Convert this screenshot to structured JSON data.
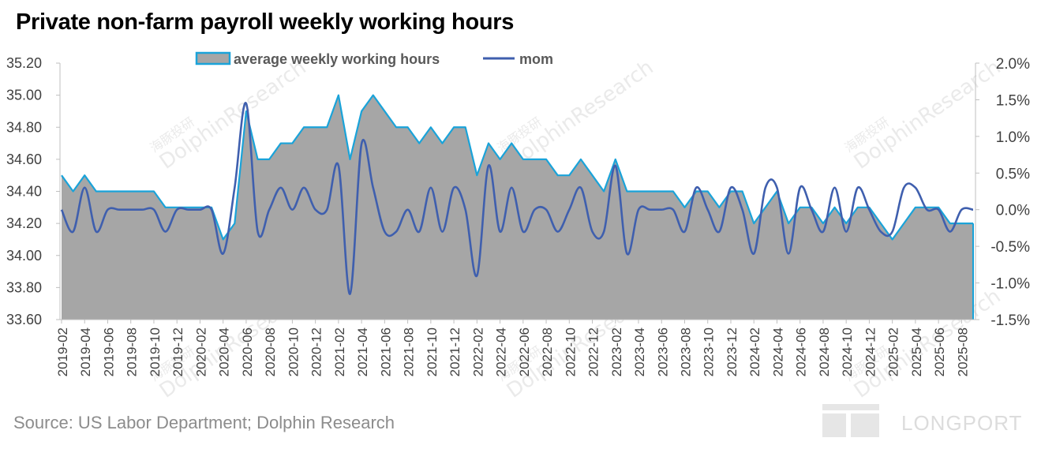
{
  "title": "Private non-farm payroll weekly working hours",
  "source": "Source: US  Labor Department; Dolphin Research",
  "watermark": {
    "cn": "海豚投研",
    "en": "DolphinResearch"
  },
  "logo": {
    "text": "LONGPORT"
  },
  "colors": {
    "area_fill": "#a6a6a6",
    "area_line": "#1aa3d9",
    "mom_line": "#3f5fae",
    "axis_text": "#404040",
    "axis_line": "#bfbfbf"
  },
  "chart_data": {
    "type": "area",
    "title": "Private non-farm payroll weekly working hours",
    "x": [
      "2019-02",
      "2019-03",
      "2019-04",
      "2019-05",
      "2019-06",
      "2019-07",
      "2019-08",
      "2019-09",
      "2019-10",
      "2019-11",
      "2019-12",
      "2020-01",
      "2020-02",
      "2020-03",
      "2020-04",
      "2020-05",
      "2020-06",
      "2020-07",
      "2020-08",
      "2020-09",
      "2020-10",
      "2020-11",
      "2020-12",
      "2021-01",
      "2021-02",
      "2021-03",
      "2021-04",
      "2021-05",
      "2021-06",
      "2021-07",
      "2021-08",
      "2021-09",
      "2021-10",
      "2021-11",
      "2021-12",
      "2022-01",
      "2022-02",
      "2022-03",
      "2022-04",
      "2022-05",
      "2022-06",
      "2022-07",
      "2022-08",
      "2022-09",
      "2022-10",
      "2022-11",
      "2022-12",
      "2023-01",
      "2023-02",
      "2023-03",
      "2023-04",
      "2023-05",
      "2023-06",
      "2023-07",
      "2023-08",
      "2023-09",
      "2023-10",
      "2023-11",
      "2023-12",
      "2024-01",
      "2024-02",
      "2024-03",
      "2024-04",
      "2024-05",
      "2024-06",
      "2024-07",
      "2024-08",
      "2024-09",
      "2024-10",
      "2024-11",
      "2024-12",
      "2025-01",
      "2025-02",
      "2025-03",
      "2025-04",
      "2025-05",
      "2025-06",
      "2025-07",
      "2025-08",
      "2025-09"
    ],
    "x_tick_labels": [
      "2019-02",
      "2019-04",
      "2019-06",
      "2019-08",
      "2019-10",
      "2019-12",
      "2020-02",
      "2020-04",
      "2020-06",
      "2020-08",
      "2020-10",
      "2020-12",
      "2021-02",
      "2021-04",
      "2021-06",
      "2021-08",
      "2021-10",
      "2021-12",
      "2022-02",
      "2022-04",
      "2022-06",
      "2022-08",
      "2022-10",
      "2022-12",
      "2023-02",
      "2023-04",
      "2023-06",
      "2023-08",
      "2023-10",
      "2023-12",
      "2024-02",
      "2024-04",
      "2024-06",
      "2024-08",
      "2024-10",
      "2024-12",
      "2025-02",
      "2025-04",
      "2025-06",
      "2025-08"
    ],
    "series": [
      {
        "name": "average weekly working hours",
        "axis": "left",
        "style": "area",
        "values": [
          34.5,
          34.4,
          34.5,
          34.4,
          34.4,
          34.4,
          34.4,
          34.4,
          34.4,
          34.3,
          34.3,
          34.3,
          34.3,
          34.3,
          34.1,
          34.2,
          34.9,
          34.6,
          34.6,
          34.7,
          34.7,
          34.8,
          34.8,
          34.8,
          35.0,
          34.6,
          34.9,
          35.0,
          34.9,
          34.8,
          34.8,
          34.7,
          34.8,
          34.7,
          34.8,
          34.8,
          34.5,
          34.7,
          34.6,
          34.7,
          34.6,
          34.6,
          34.6,
          34.5,
          34.5,
          34.6,
          34.5,
          34.4,
          34.6,
          34.4,
          34.4,
          34.4,
          34.4,
          34.4,
          34.3,
          34.4,
          34.4,
          34.3,
          34.4,
          34.4,
          34.2,
          34.3,
          34.4,
          34.2,
          34.3,
          34.3,
          34.2,
          34.3,
          34.2,
          34.3,
          34.3,
          34.2,
          34.1,
          34.2,
          34.3,
          34.3,
          34.3,
          34.2,
          34.2,
          34.2
        ]
      },
      {
        "name": "mom",
        "axis": "right",
        "style": "line",
        "values": [
          0.0,
          -0.3,
          0.3,
          -0.3,
          0.0,
          0.0,
          0.0,
          0.0,
          0.0,
          -0.3,
          0.0,
          0.0,
          0.0,
          0.0,
          -0.6,
          0.3,
          1.45,
          -0.3,
          0.0,
          0.3,
          0.0,
          0.3,
          0.0,
          0.0,
          0.6,
          -1.15,
          0.9,
          0.3,
          -0.3,
          -0.3,
          0.0,
          -0.3,
          0.3,
          -0.3,
          0.3,
          0.0,
          -0.9,
          0.6,
          -0.3,
          0.3,
          -0.3,
          0.0,
          0.0,
          -0.3,
          0.0,
          0.3,
          -0.3,
          -0.3,
          0.6,
          -0.6,
          0.0,
          0.0,
          0.0,
          0.0,
          -0.3,
          0.3,
          0.0,
          -0.3,
          0.3,
          0.0,
          -0.6,
          0.3,
          0.3,
          -0.6,
          0.3,
          0.0,
          -0.3,
          0.3,
          -0.3,
          0.3,
          0.0,
          -0.3,
          -0.3,
          0.3,
          0.3,
          0.0,
          0.0,
          -0.3,
          0.0,
          0.0
        ]
      }
    ],
    "y_left": {
      "min": 33.6,
      "max": 35.2,
      "ticks": [
        "33.60",
        "33.80",
        "34.00",
        "34.20",
        "34.40",
        "34.60",
        "34.80",
        "35.00",
        "35.20"
      ]
    },
    "y_right": {
      "min": -1.5,
      "max": 2.0,
      "ticks": [
        "-1.5%",
        "-1.0%",
        "-0.5%",
        "0.0%",
        "0.5%",
        "1.0%",
        "1.5%",
        "2.0%"
      ]
    },
    "legend_position": "top-center",
    "grid": false
  }
}
